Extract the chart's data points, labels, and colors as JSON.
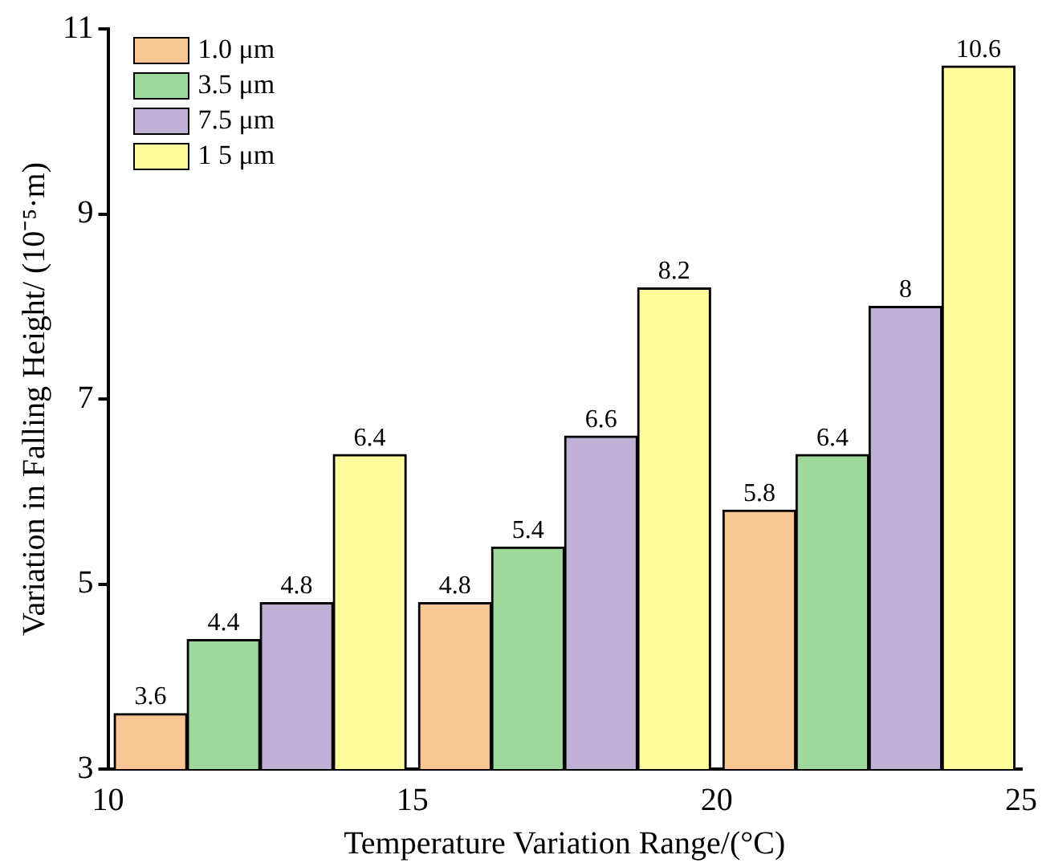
{
  "chart_data": {
    "type": "bar",
    "xlabel": "Temperature Variation Range/(°C)",
    "ylabel": "Variation in Falling Height/ (10⁻⁵·m)",
    "x": [
      12.5,
      17.5,
      22.5
    ],
    "xlim": [
      10,
      25
    ],
    "xticks": [
      10,
      15,
      20,
      25
    ],
    "ylim": [
      3,
      11
    ],
    "yticks": [
      3,
      5,
      7,
      9,
      11
    ],
    "series": [
      {
        "name": "1.0 μm",
        "color": "#f9c795",
        "values": [
          3.6,
          4.8,
          5.8
        ]
      },
      {
        "name": "3.5 μm",
        "color": "#9fd89c",
        "values": [
          4.4,
          5.4,
          6.4
        ]
      },
      {
        "name": "7.5 μm",
        "color": "#c0b0d6",
        "values": [
          4.8,
          6.6,
          8
        ]
      },
      {
        "name": "1 5 μm",
        "color": "#fffc9c",
        "values": [
          6.4,
          8.2,
          10.6
        ]
      }
    ],
    "data_labels": true,
    "legend": "top left",
    "grid": false
  }
}
